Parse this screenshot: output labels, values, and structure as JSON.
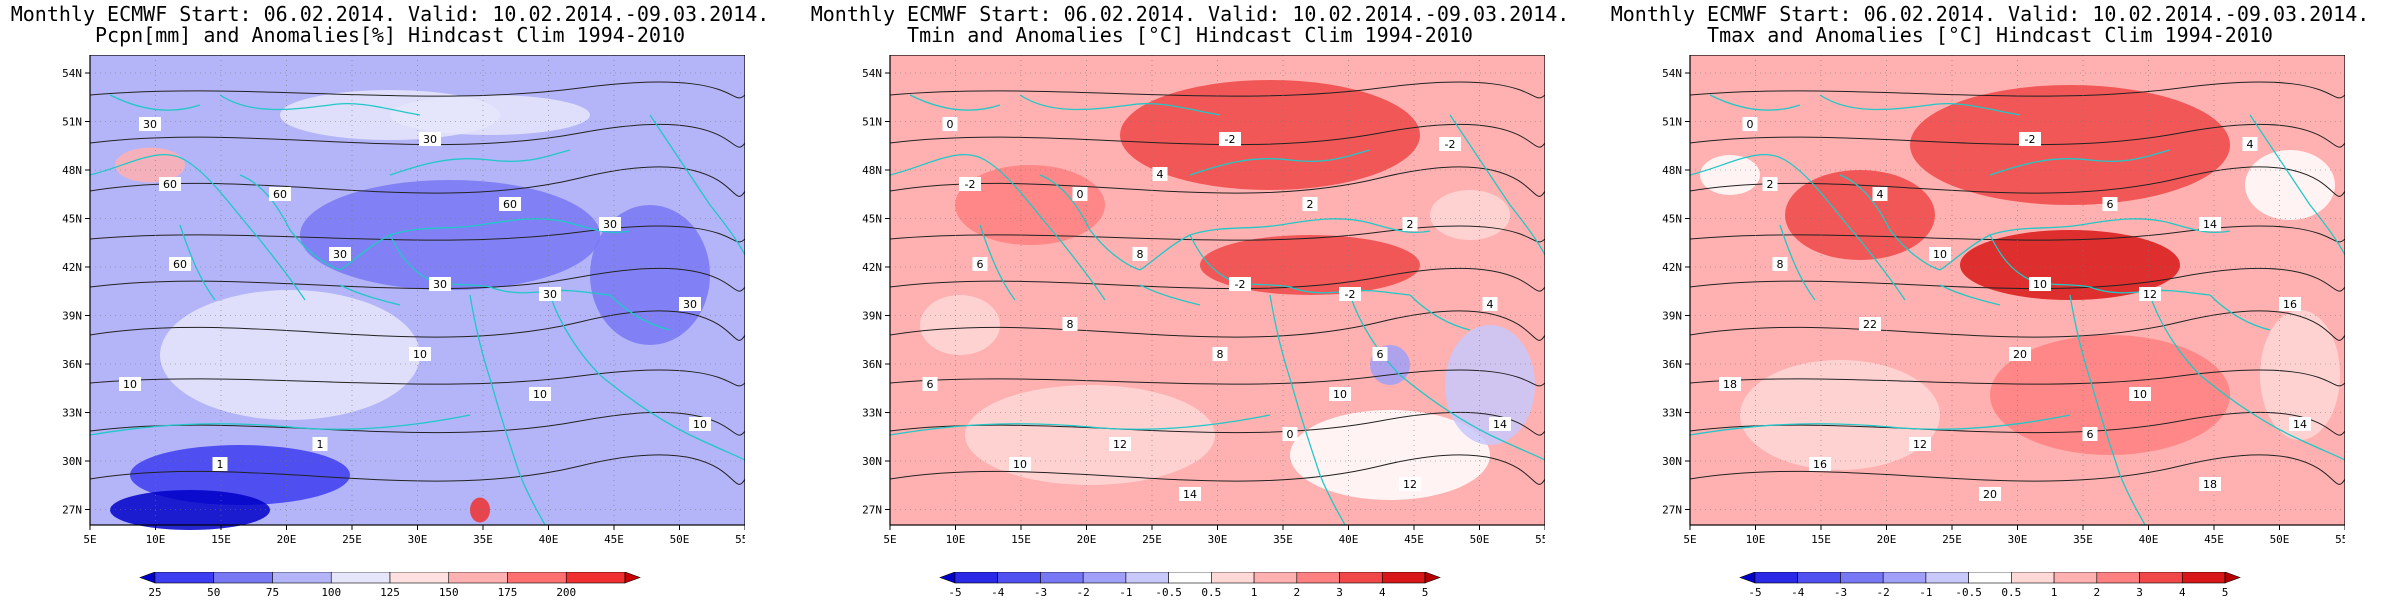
{
  "panels": [
    {
      "id": "pcpn",
      "title_line1": "Monthly ECMWF Start: 06.02.2014. Valid: 10.02.2014.-09.03.2014.",
      "title_line2": "Pcpn[mm] and Anomalies[%] Hindcast Clim 1994-2010",
      "lat_labels": [
        "54N",
        "51N",
        "48N",
        "45N",
        "42N",
        "39N",
        "36N",
        "33N",
        "30N",
        "27N"
      ],
      "lon_labels": [
        "5E",
        "10E",
        "15E",
        "20E",
        "25E",
        "30E",
        "35E",
        "40E",
        "45E",
        "50E",
        "55E"
      ],
      "colorbar": {
        "labels": [
          "25",
          "50",
          "75",
          "100",
          "125",
          "150",
          "175",
          "200"
        ],
        "colors": [
          "#0000c8",
          "#3c3cf0",
          "#7878f5",
          "#b4b4f8",
          "#e6e6fb",
          "#ffe0e0",
          "#ffb0b0",
          "#ff7070",
          "#f03030",
          "#c80000"
        ]
      },
      "contour_labels": [
        "30",
        "30",
        "60",
        "60",
        "60",
        "60",
        "30",
        "30",
        "30",
        "30",
        "30",
        "10",
        "10",
        "10",
        "1",
        "10",
        "1"
      ]
    },
    {
      "id": "tmin",
      "title_line1": "Monthly ECMWF Start: 06.02.2014. Valid: 10.02.2014.-09.03.2014.",
      "title_line2": "Tmin and Anomalies [°C] Hindcast Clim 1994-2010",
      "lat_labels": [
        "54N",
        "51N",
        "48N",
        "45N",
        "42N",
        "39N",
        "36N",
        "33N",
        "30N",
        "27N"
      ],
      "lon_labels": [
        "5E",
        "10E",
        "15E",
        "20E",
        "25E",
        "30E",
        "35E",
        "40E",
        "45E",
        "50E",
        "55E"
      ],
      "colorbar": {
        "labels": [
          "-5",
          "-4",
          "-3",
          "-2",
          "-1",
          "-0.5",
          "0.5",
          "1",
          "2",
          "3",
          "4",
          "5"
        ],
        "colors": [
          "#0000c8",
          "#2828e6",
          "#5050f0",
          "#7878f5",
          "#a0a0f8",
          "#c8c8fb",
          "#ffffff",
          "#ffd8d8",
          "#ffb0b0",
          "#ff8080",
          "#f04848",
          "#d81818",
          "#b40000"
        ]
      },
      "contour_labels": [
        "0",
        "-2",
        "-2",
        "0",
        "2",
        "6",
        "8",
        "-2",
        "-2",
        "2",
        "4",
        "6",
        "8",
        "10",
        "12",
        "14",
        "10",
        "12",
        "14",
        "8",
        "-2",
        "0",
        "4",
        "6"
      ]
    },
    {
      "id": "tmax",
      "title_line1": "Monthly ECMWF Start: 06.02.2014. Valid: 10.02.2014.-09.03.2014.",
      "title_line2": "Tmax and Anomalies [°C] Hindcast Clim 1994-2010",
      "lat_labels": [
        "54N",
        "51N",
        "48N",
        "45N",
        "42N",
        "39N",
        "36N",
        "33N",
        "30N",
        "27N"
      ],
      "lon_labels": [
        "5E",
        "10E",
        "15E",
        "20E",
        "25E",
        "30E",
        "35E",
        "40E",
        "45E",
        "50E",
        "55E"
      ],
      "colorbar": {
        "labels": [
          "-5",
          "-4",
          "-3",
          "-2",
          "-1",
          "-0.5",
          "0.5",
          "1",
          "2",
          "3",
          "4",
          "5"
        ],
        "colors": [
          "#0000c8",
          "#2828e6",
          "#5050f0",
          "#7878f5",
          "#a0a0f8",
          "#c8c8fb",
          "#ffffff",
          "#ffd8d8",
          "#ffb0b0",
          "#ff8080",
          "#f04848",
          "#d81818",
          "#b40000"
        ]
      },
      "contour_labels": [
        "0",
        "-2",
        "2",
        "4",
        "6",
        "8",
        "10",
        "10",
        "12",
        "14",
        "16",
        "18",
        "20",
        "10",
        "12",
        "14",
        "16",
        "18",
        "20",
        "22",
        "4",
        "6"
      ]
    }
  ]
}
